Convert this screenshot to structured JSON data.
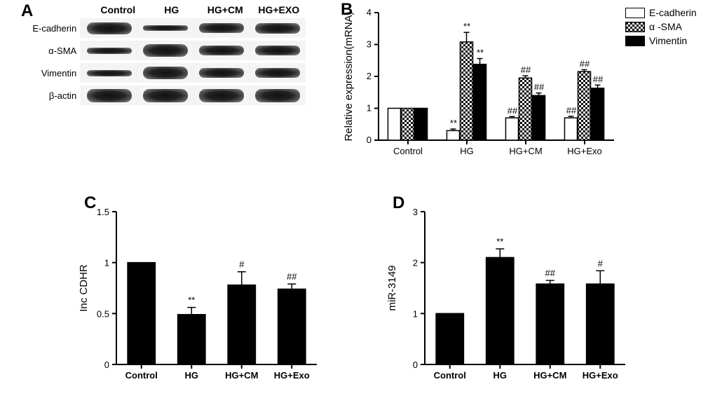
{
  "panels": {
    "A": "A",
    "B": "B",
    "C": "C",
    "D": "D"
  },
  "blot": {
    "conditions": [
      "Control",
      "HG",
      "HG+CM",
      "HG+EXO"
    ],
    "rows": [
      {
        "label": "E-cadherin",
        "h": [
          17,
          8,
          14,
          15
        ]
      },
      {
        "label": "α-SMA",
        "h": [
          9,
          18,
          14,
          14
        ]
      },
      {
        "label": "Vimentin",
        "h": [
          9,
          18,
          14,
          14
        ]
      },
      {
        "label": "β-actin",
        "h": [
          19,
          19,
          19,
          19
        ]
      }
    ]
  },
  "B": {
    "ylabel": "Relative expression(mRNA)",
    "ylim": [
      0,
      4
    ],
    "yticks": [
      0,
      1,
      2,
      3,
      4
    ],
    "groups": [
      "Control",
      "HG",
      "HG+CM",
      "HG+Exo"
    ],
    "series": [
      {
        "name": "E-cadherin",
        "fill": "#ffffff"
      },
      {
        "name": "α -SMA",
        "fill": "checker"
      },
      {
        "name": "Vimentin",
        "fill": "#000000"
      }
    ],
    "values": [
      [
        1.0,
        1.0,
        1.0
      ],
      [
        0.3,
        3.08,
        2.38
      ],
      [
        0.7,
        1.95,
        1.4
      ],
      [
        0.7,
        2.15,
        1.63
      ]
    ],
    "errs": [
      [
        0,
        0,
        0
      ],
      [
        0.05,
        0.3,
        0.18
      ],
      [
        0.04,
        0.07,
        0.08
      ],
      [
        0.05,
        0.06,
        0.1
      ]
    ],
    "sig": [
      [
        "",
        "",
        ""
      ],
      [
        "**",
        "**",
        "**"
      ],
      [
        "##",
        "##",
        "##"
      ],
      [
        "##",
        "##",
        "##"
      ]
    ],
    "colors": {
      "axis": "#000",
      "bg": "#fff"
    }
  },
  "C": {
    "ylabel": "Inc CDHR",
    "ylim": [
      0,
      1.5
    ],
    "yticks": [
      0.0,
      0.5,
      1.0,
      1.5
    ],
    "groups": [
      "Control",
      "HG",
      "HG+CM",
      "HG+Exo"
    ],
    "values": [
      1.0,
      0.49,
      0.78,
      0.74
    ],
    "errs": [
      0,
      0.07,
      0.13,
      0.05
    ],
    "sig": [
      "",
      "**",
      "#",
      "##"
    ],
    "fill": "#000000"
  },
  "D": {
    "ylabel": "miR-3149",
    "ylim": [
      0,
      3
    ],
    "yticks": [
      0,
      1,
      2,
      3
    ],
    "groups": [
      "Control",
      "HG",
      "HG+CM",
      "HG+Exo"
    ],
    "values": [
      1.0,
      2.1,
      1.58,
      1.58
    ],
    "errs": [
      0,
      0.17,
      0.07,
      0.26
    ],
    "sig": [
      "",
      "**",
      "##",
      "#"
    ],
    "fill": "#000000"
  }
}
